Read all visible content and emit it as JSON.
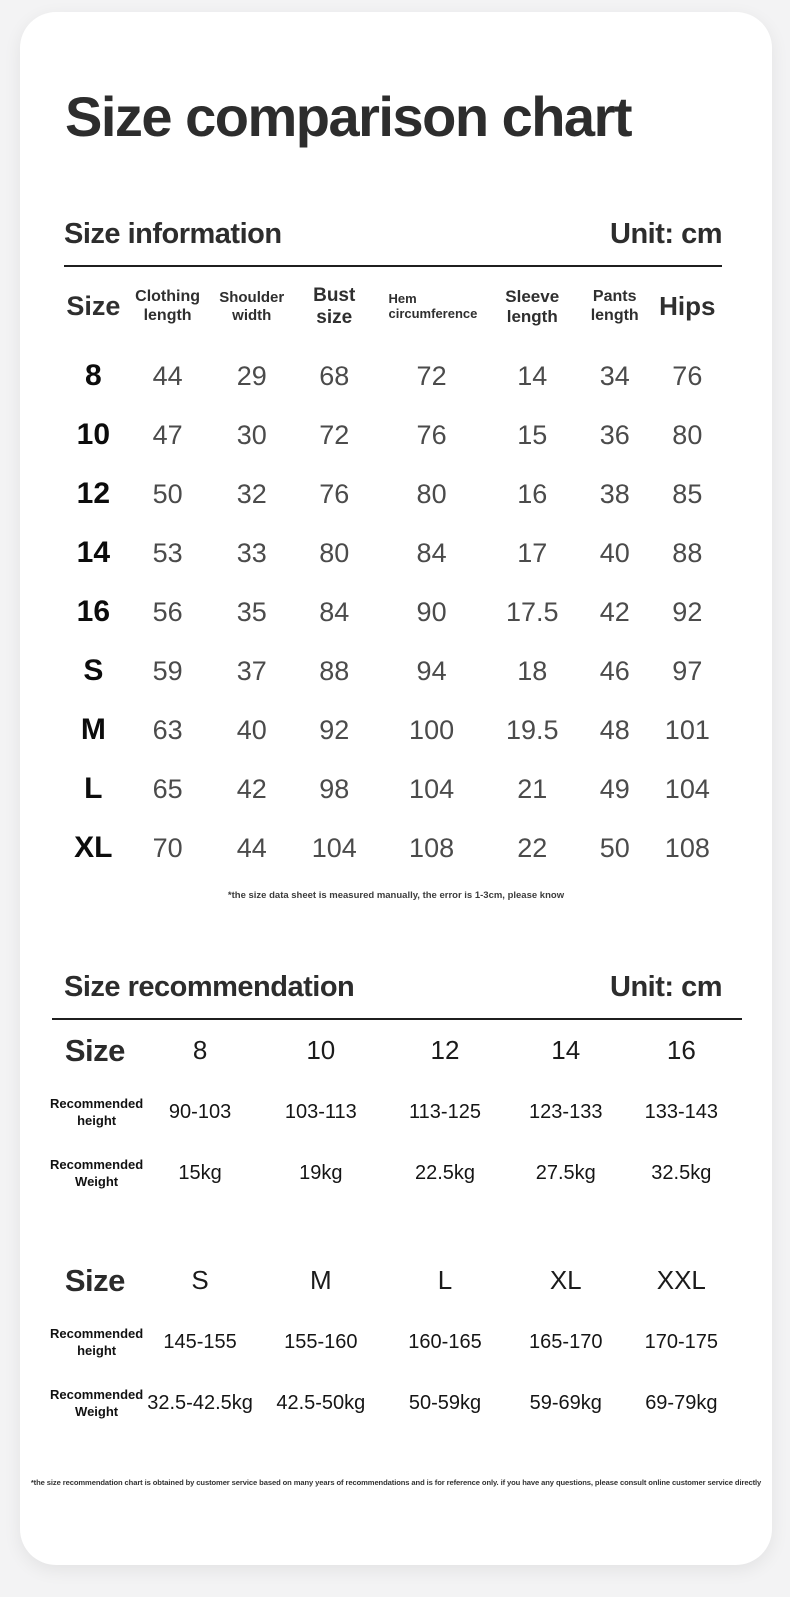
{
  "title": "Size comparison chart",
  "colors": {
    "page_bg": "#f3f3f4",
    "card_bg": "#ffffff",
    "text_primary": "#2d2d2d",
    "text_secondary": "#4b4b4b",
    "rule": "#1f1f1f"
  },
  "size_information": {
    "heading": "Size information",
    "unit_label": "Unit: cm",
    "columns": [
      "Size",
      "Clothing length",
      "Shoulder width",
      "Bust size",
      "Hem circumference",
      "Sleeve length",
      "Pants length",
      "Hips"
    ],
    "rows": [
      {
        "size": "8",
        "values": [
          "44",
          "29",
          "68",
          "72",
          "14",
          "34",
          "76"
        ]
      },
      {
        "size": "10",
        "values": [
          "47",
          "30",
          "72",
          "76",
          "15",
          "36",
          "80"
        ]
      },
      {
        "size": "12",
        "values": [
          "50",
          "32",
          "76",
          "80",
          "16",
          "38",
          "85"
        ]
      },
      {
        "size": "14",
        "values": [
          "53",
          "33",
          "80",
          "84",
          "17",
          "40",
          "88"
        ]
      },
      {
        "size": "16",
        "values": [
          "56",
          "35",
          "84",
          "90",
          "17.5",
          "42",
          "92"
        ]
      },
      {
        "size": "S",
        "values": [
          "59",
          "37",
          "88",
          "94",
          "18",
          "46",
          "97"
        ]
      },
      {
        "size": "M",
        "values": [
          "63",
          "40",
          "92",
          "100",
          "19.5",
          "48",
          "101"
        ]
      },
      {
        "size": "L",
        "values": [
          "65",
          "42",
          "98",
          "104",
          "21",
          "49",
          "104"
        ]
      },
      {
        "size": "XL",
        "values": [
          "70",
          "44",
          "104",
          "108",
          "22",
          "50",
          "108"
        ]
      }
    ],
    "footnote": "*the size data sheet is measured manually, the error is 1-3cm, please know"
  },
  "size_recommendation": {
    "heading": "Size recommendation",
    "unit_label": "Unit: cm",
    "row_labels": {
      "size": "Size",
      "height": "Recommended height",
      "weight": "Recommended Weight"
    },
    "tables": [
      {
        "sizes": [
          "8",
          "10",
          "12",
          "14",
          "16"
        ],
        "heights": [
          "90-103",
          "103-113",
          "113-125",
          "123-133",
          "133-143"
        ],
        "weights": [
          "15kg",
          "19kg",
          "22.5kg",
          "27.5kg",
          "32.5kg"
        ]
      },
      {
        "sizes": [
          "S",
          "M",
          "L",
          "XL",
          "XXL"
        ],
        "heights": [
          "145-155",
          "155-160",
          "160-165",
          "165-170",
          "170-175"
        ],
        "weights": [
          "32.5-42.5kg",
          "42.5-50kg",
          "50-59kg",
          "59-69kg",
          "69-79kg"
        ]
      }
    ],
    "footnote": "*the size recommendation chart is obtained by customer service based on many years of recommendations and is for reference only. if you have any questions, please consult online customer service directly"
  }
}
